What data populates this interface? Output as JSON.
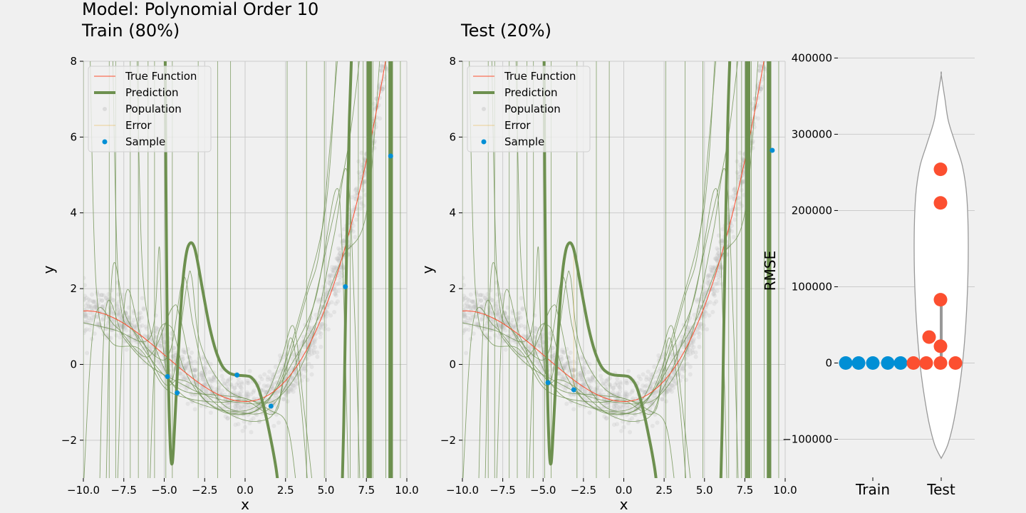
{
  "figure": {
    "title_line1": "Model: Polynomial Order 10",
    "title_line2": "Train (80%)",
    "test_title": "Test (20%)"
  },
  "colors": {
    "background": "#f0f0f0",
    "grid": "#cbcbcb",
    "true_function": "#fc4f30",
    "prediction": "#6d904f",
    "population": "#bbbbbb",
    "error": "#e5ae38",
    "sample": "#008fd5",
    "train_dots": "#008fd5",
    "test_dots": "#fc4f30",
    "violin_edge": "#999999"
  },
  "chart_data": [
    {
      "id": "train",
      "type": "scatter",
      "title": "Train (80%)",
      "xlabel": "x",
      "ylabel": "y",
      "xlim": [
        -10,
        10
      ],
      "ylim": [
        -3,
        8
      ],
      "xticks": [
        -10,
        -7.5,
        -5,
        -2.5,
        0,
        2.5,
        5,
        7.5,
        10
      ],
      "xticklabels": [
        "−10.0",
        "−7.5",
        "−5.0",
        "−2.5",
        "0.0",
        "2.5",
        "5.0",
        "7.5",
        "10.0"
      ],
      "yticks": [
        -2,
        0,
        2,
        4,
        6,
        8
      ],
      "yticklabels": [
        "−2",
        "0",
        "2",
        "4",
        "6",
        "8"
      ],
      "grid": true,
      "legend": {
        "placement": "top-left",
        "entries": [
          "True Function",
          "Prediction",
          "Population",
          "Error",
          "Sample"
        ]
      },
      "samples": [
        {
          "x": -4.8,
          "y": -0.32
        },
        {
          "x": -4.2,
          "y": -0.75
        },
        {
          "x": -0.5,
          "y": -0.28
        },
        {
          "x": 1.6,
          "y": -1.1
        },
        {
          "x": 6.2,
          "y": 2.05
        },
        {
          "x": 9.0,
          "y": 5.5
        }
      ]
    },
    {
      "id": "test",
      "type": "scatter",
      "title": "Test (20%)",
      "xlabel": "x",
      "ylabel": "y",
      "xlim": [
        -10,
        10
      ],
      "ylim": [
        -3,
        8
      ],
      "xticks": [
        -10,
        -7.5,
        -5,
        -2.5,
        0,
        2.5,
        5,
        7.5,
        10
      ],
      "xticklabels": [
        "−10.0",
        "−7.5",
        "−5.0",
        "−2.5",
        "0.0",
        "2.5",
        "5.0",
        "7.5",
        "10.0"
      ],
      "yticks": [
        -2,
        0,
        2,
        4,
        6,
        8
      ],
      "yticklabels": [
        "−2",
        "0",
        "2",
        "4",
        "6",
        "8"
      ],
      "grid": true,
      "legend": {
        "placement": "top-left",
        "entries": [
          "True Function",
          "Prediction",
          "Population",
          "Error",
          "Sample"
        ]
      },
      "samples": [
        {
          "x": -4.7,
          "y": -0.48
        },
        {
          "x": -3.1,
          "y": -0.67
        },
        {
          "x": 9.2,
          "y": 5.65
        }
      ]
    },
    {
      "id": "rmse",
      "type": "scatter",
      "ylabel": "RMSE",
      "categories": [
        "Train",
        "Test"
      ],
      "ylim": [
        -150000,
        420000
      ],
      "yticks": [
        -100000,
        0,
        100000,
        200000,
        300000,
        400000
      ],
      "yticklabels": [
        "−100000",
        "0",
        "100000",
        "200000",
        "300000",
        "400000"
      ],
      "grid": true,
      "series": [
        {
          "category": "Train",
          "values": [
            0,
            0,
            0,
            0,
            0
          ]
        },
        {
          "category": "Test",
          "values": [
            254000,
            210000,
            83000,
            34000,
            22000,
            0,
            0,
            0,
            0
          ]
        }
      ],
      "violin": {
        "category": "Test",
        "min": -125000,
        "max": 378000
      }
    }
  ]
}
